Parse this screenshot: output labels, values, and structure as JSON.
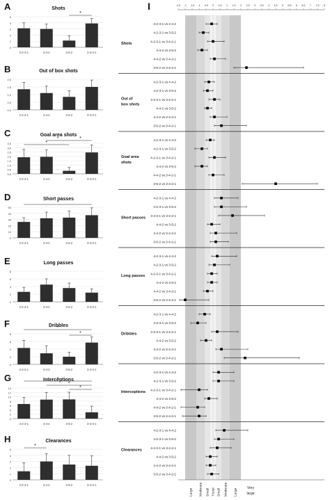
{
  "left_panels": [
    {
      "letter": "A",
      "title": "Shots",
      "yticks": [
        "0",
        "1",
        "2",
        "3",
        "4",
        "5"
      ],
      "ymax": 5,
      "categories": [
        "4-2-3-1",
        "4-4-2",
        "3-5-2",
        "3-4-2-1"
      ],
      "values": [
        3.1,
        3.0,
        1.1,
        3.9
      ],
      "errors": [
        0.9,
        0.8,
        0.8,
        0.8
      ],
      "sig": "*"
    },
    {
      "letter": "B",
      "title": "Out of box shots",
      "yticks": [
        "0,0",
        "0,5",
        "1,0",
        "1,5",
        "2,0"
      ],
      "ymax": 2,
      "categories": [
        "4-2-3-1",
        "4-4-2",
        "3-5-2",
        "3-4-2-1"
      ],
      "values": [
        1.35,
        1.1,
        0.85,
        1.5
      ],
      "errors": [
        0.45,
        0.45,
        0.4,
        0.45
      ],
      "sig": ""
    },
    {
      "letter": "C",
      "title": "Goal area shots",
      "yticks": [
        "0,0",
        "0,5",
        "1,0",
        "1,5",
        "2,0",
        "2,5",
        "3,0",
        "3,5"
      ],
      "ymax": 3.5,
      "categories": [
        "4-2-3-1",
        "4-4-2",
        "3-5-2",
        "3-4-2-1"
      ],
      "values": [
        1.9,
        1.95,
        0.35,
        2.45
      ],
      "errors": [
        0.9,
        0.8,
        0.4,
        0.85
      ],
      "sig": "*"
    },
    {
      "letter": "D",
      "title": "Short passes",
      "yticks": [
        "0",
        "10",
        "20",
        "30",
        "40",
        "50"
      ],
      "ymax": 50,
      "categories": [
        "4-2-3-1",
        "4-4-2",
        "3-5-2",
        "3-4-2-1"
      ],
      "values": [
        26,
        32,
        33,
        37
      ],
      "errors": [
        7,
        10,
        11,
        12
      ],
      "sig": "*"
    },
    {
      "letter": "E",
      "title": "Long passes",
      "yticks": [
        "0",
        "2",
        "4",
        "6",
        "8"
      ],
      "ymax": 8,
      "categories": [
        "4-2-3-1",
        "4-4-2",
        "3-5-2",
        "3-4-2-1"
      ],
      "values": [
        2.6,
        4.5,
        3.6,
        2.4
      ],
      "errors": [
        1.2,
        1.5,
        1.3,
        1.0
      ],
      "sig": ""
    },
    {
      "letter": "F",
      "title": "Dribbles",
      "yticks": [
        "0",
        "2",
        "4",
        "6",
        "8"
      ],
      "ymax": 8,
      "categories": [
        "4-2-3-1",
        "4-4-2",
        "3-5-2",
        "3-4-2-1"
      ],
      "values": [
        4.3,
        2.9,
        2.0,
        5.7
      ],
      "errors": [
        2.0,
        2.0,
        1.2,
        1.5
      ],
      "sig": "*"
    },
    {
      "letter": "G",
      "title": "Interceptions",
      "yticks": [
        "0",
        "2",
        "4",
        "6",
        "8",
        "10",
        "12",
        "14"
      ],
      "ymax": 14,
      "categories": [
        "4-2-3-1",
        "4-4-2",
        "3-5-2",
        "3-4-2-1"
      ],
      "values": [
        6.7,
        8.7,
        8.8,
        2.9
      ],
      "errors": [
        3.0,
        3.2,
        3.3,
        2.8
      ],
      "sig": "*"
    },
    {
      "letter": "H",
      "title": "Clearances",
      "yticks": [
        "0",
        "1",
        "2",
        "3",
        "4",
        "5"
      ],
      "ymax": 5,
      "categories": [
        "4-2-3-1",
        "4-4-2",
        "3-5-2",
        "3-4-2-1"
      ],
      "values": [
        1.4,
        3.0,
        2.5,
        2.3
      ],
      "errors": [
        1.4,
        1.3,
        1.5,
        1.6
      ],
      "sig": "*"
    }
  ],
  "forest": {
    "letter": "I",
    "x_ticks": [
      "-2,5",
      "-2",
      "-1,5",
      "-1",
      "-0,5",
      "0",
      "0,5",
      "1",
      "1,5",
      "2",
      "2,5",
      "3",
      "3,5",
      "4",
      "4,5",
      "5",
      "5,5",
      "6",
      "6,5",
      "7",
      "7,5",
      "8"
    ],
    "xlim": [
      -2.5,
      8
    ],
    "sections": [
      {
        "label": "Shots",
        "rows": [
          {
            "c": "4-2-3-1 vs 4-4-2",
            "v": -0.1,
            "lo": -0.5,
            "hi": 0.3
          },
          {
            "c": "4-2-3-1 vs 3-5-2",
            "v": -0.7,
            "lo": -1.0,
            "hi": -0.3
          },
          {
            "c": "4-2-3-1 vs 3-4-2-1",
            "v": 0.0,
            "lo": -0.4,
            "hi": 0.8
          },
          {
            "c": "4-4-2 vs 3-5-2",
            "v": -0.8,
            "lo": -1.1,
            "hi": -0.4
          },
          {
            "c": "4-4-2 vs 3-4-2-1",
            "v": 0.1,
            "lo": -0.2,
            "hi": 0.9
          },
          {
            "c": "3-5-2 vs 3-4-2-1",
            "v": 2.4,
            "lo": 1.5,
            "hi": 6.5
          }
        ]
      },
      {
        "label": "Out of box shots",
        "rows": [
          {
            "c": "4-2-3-1 vs 4-4-2",
            "v": -0.3,
            "lo": -0.6,
            "hi": 0.1
          },
          {
            "c": "4-2-3-1 vs 3-5-2",
            "v": -0.4,
            "lo": -0.7,
            "hi": 0.0
          },
          {
            "c": "4-2-3-1 vs 3-4-2-1",
            "v": 0.1,
            "lo": -0.3,
            "hi": 0.5
          },
          {
            "c": "4-4-2 vs 3-5-2",
            "v": -0.4,
            "lo": -0.6,
            "hi": -0.1
          },
          {
            "c": "4-4-2 vs 3-4-2-1",
            "v": 0.1,
            "lo": -0.2,
            "hi": 1.0
          },
          {
            "c": "3-5-2 vs 3-4-2-1",
            "v": 0.6,
            "lo": 0.1,
            "hi": 2.4
          }
        ]
      },
      {
        "label": "Goal area shots",
        "rows": [
          {
            "c": "4-2-3-1 vs 4-4-2",
            "v": -0.2,
            "lo": -0.5,
            "hi": 0.1
          },
          {
            "c": "4-2-3-1 vs 3-5-2",
            "v": -0.8,
            "lo": -1.3,
            "hi": -0.4
          },
          {
            "c": "4-2-3-1 vs 3-4-2-1",
            "v": 0.1,
            "lo": -0.3,
            "hi": 0.9
          },
          {
            "c": "4-4-2 vs 3-5-2",
            "v": -0.8,
            "lo": -1.3,
            "hi": -0.4
          },
          {
            "c": "4-4-2 vs 3-4-2-1",
            "v": 0.0,
            "lo": -0.3,
            "hi": 0.8
          },
          {
            "c": "3-5-2 vs 3-4-2-1",
            "v": 4.5,
            "lo": 2.1,
            "hi": 7.5
          }
        ]
      },
      {
        "label": "Short passes",
        "rows": [
          {
            "c": "4-2-3-1 vs 4-4-2",
            "v": 0.6,
            "lo": 0.1,
            "hi": 1.8
          },
          {
            "c": "4-2-3-1 vs 3-5-2",
            "v": 0.6,
            "lo": 0.1,
            "hi": 2.4
          },
          {
            "c": "4-2-3-1 vs 3-4-2-1",
            "v": 1.4,
            "lo": 0.4,
            "hi": 3.7
          },
          {
            "c": "4-4-2 vs 3-5-2",
            "v": -0.1,
            "lo": -0.4,
            "hi": 0.5
          },
          {
            "c": "4-4-2 vs 3-4-2-1",
            "v": 0.2,
            "lo": -0.2,
            "hi": 1.7
          },
          {
            "c": "3-5-2 vs 3-4-2-1",
            "v": 0.2,
            "lo": -0.2,
            "hi": 1.1
          }
        ]
      },
      {
        "label": "Long passes",
        "rows": [
          {
            "c": "4-2-3-1 vs 4-4-2",
            "v": 0.3,
            "lo": -0.1,
            "hi": 1.7
          },
          {
            "c": "4-2-3-1 vs 3-5-2",
            "v": 0.1,
            "lo": -0.3,
            "hi": 1.2
          },
          {
            "c": "4-2-3-1 vs 3-4-2-1",
            "v": -0.1,
            "lo": -0.4,
            "hi": 0.3
          },
          {
            "c": "4-4-2 vs 3-5-2",
            "v": -0.1,
            "lo": -0.4,
            "hi": 0.3
          },
          {
            "c": "4-4-2 vs 3-4-2-1",
            "v": -0.4,
            "lo": -0.7,
            "hi": 0.0
          },
          {
            "c": "3-5-2 vs 3-4-2-1",
            "v": -2.0,
            "lo": -2.4,
            "hi": -0.3
          }
        ]
      },
      {
        "label": "Dribbles",
        "rows": [
          {
            "c": "4-2-3-1 vs 4-4-2",
            "v": -0.6,
            "lo": -1.0,
            "hi": -0.2
          },
          {
            "c": "4-2-3-1 vs 3-5-2",
            "v": -1.1,
            "lo": -1.6,
            "hi": -0.5
          },
          {
            "c": "4-2-3-1 vs 3-4-2-1",
            "v": 0.3,
            "lo": -0.1,
            "hi": 1.8
          },
          {
            "c": "4-4-2 vs 3-5-2",
            "v": -0.5,
            "lo": -0.9,
            "hi": -0.1
          },
          {
            "c": "4-4-2 vs 3-4-2-1",
            "v": 0.6,
            "lo": 0.2,
            "hi": 2.5
          },
          {
            "c": "3-5-2 vs 3-4-2-1",
            "v": 2.3,
            "lo": 0.8,
            "hi": 6.2
          }
        ]
      },
      {
        "label": "Interceptions",
        "rows": [
          {
            "c": "4-2-3-1 vs 4-4-2",
            "v": 0.4,
            "lo": 0.0,
            "hi": 1.5
          },
          {
            "c": "4-2-3-1 vs 3-5-2",
            "v": 0.4,
            "lo": 0.0,
            "hi": 1.5
          },
          {
            "c": "4-2-3-1 vs 3-4-2-1",
            "v": -1.0,
            "lo": -2.3,
            "hi": -0.4
          },
          {
            "c": "4-4-2 vs 3-5-2",
            "v": -0.3,
            "lo": -0.6,
            "hi": 0.3
          },
          {
            "c": "4-4-2 vs 3-4-2-1",
            "v": -1.1,
            "lo": -2.3,
            "hi": -0.6
          },
          {
            "c": "3-5-2 vs 3-4-2-1",
            "v": -1.0,
            "lo": -2.2,
            "hi": -0.5
          }
        ]
      },
      {
        "label": "Clearances",
        "rows": [
          {
            "c": "4-2-3-1 vs 4-4-2",
            "v": 0.8,
            "lo": 0.2,
            "hi": 2.5
          },
          {
            "c": "4-2-3-1 vs 3-5-2",
            "v": 0.4,
            "lo": 0.1,
            "hi": 1.5
          },
          {
            "c": "4-2-3-1 vs 3-4-2-1",
            "v": 0.3,
            "lo": -0.2,
            "hi": 1.3
          },
          {
            "c": "4-4-2 vs 3-5-2",
            "v": -0.2,
            "lo": -0.5,
            "hi": 0.3
          },
          {
            "c": "4-4-2 vs 3-4-2-1",
            "v": -0.2,
            "lo": -0.5,
            "hi": 0.2
          },
          {
            "c": "3-5-2 vs 3-4-2-1",
            "v": -0.1,
            "lo": -0.4,
            "hi": 0.4
          }
        ]
      }
    ],
    "effect_labels": [
      "Large",
      "Moderate",
      "Small",
      "Trivial",
      "Small",
      "Moderate",
      "Large",
      "Very large"
    ]
  },
  "chart_data": {
    "type": "bar",
    "note_panels": "A-H bar charts; I forest plot",
    "categories": [
      "4-2-3-1",
      "4-4-2",
      "3-5-2",
      "3-4-2-1"
    ]
  }
}
